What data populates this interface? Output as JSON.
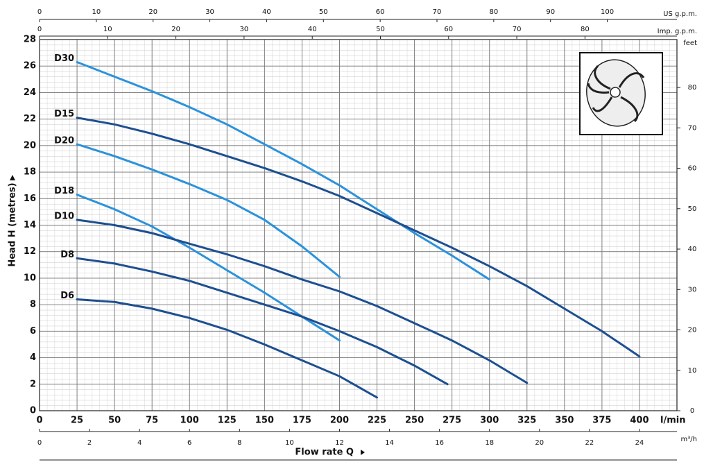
{
  "chart_data": {
    "type": "line",
    "xlabel": "Flow rate Q",
    "xunit": "l/min",
    "ylabel": "Head H (metres)",
    "y2label": "feet",
    "xlim": [
      0,
      425
    ],
    "xticks": [
      0,
      25,
      50,
      75,
      100,
      125,
      150,
      175,
      200,
      225,
      250,
      275,
      300,
      325,
      350,
      375,
      400
    ],
    "ylim": [
      0,
      28
    ],
    "yticks": [
      0,
      2,
      4,
      6,
      8,
      10,
      12,
      14,
      16,
      18,
      20,
      22,
      24,
      26,
      28
    ],
    "y2lim": [
      0,
      91.86
    ],
    "y2ticks": [
      0,
      10,
      20,
      30,
      40,
      50,
      60,
      70,
      80
    ],
    "grid": true,
    "extra_x_axes": [
      {
        "label": "m³/h",
        "position": "bottom",
        "lim": [
          0,
          25.5
        ],
        "ticks": [
          0,
          2,
          4,
          6,
          8,
          10,
          12,
          14,
          16,
          18,
          20,
          22,
          24
        ]
      },
      {
        "label": "US g.p.m.",
        "position": "top",
        "lim": [
          0,
          112.27
        ],
        "ticks": [
          0,
          10,
          20,
          30,
          40,
          50,
          60,
          70,
          80,
          90,
          100
        ]
      },
      {
        "label": "Imp. g.p.m.",
        "position": "top",
        "lim": [
          0,
          93.49
        ],
        "ticks": [
          0,
          10,
          20,
          30,
          40,
          50,
          60,
          70,
          80
        ]
      }
    ],
    "series": [
      {
        "name": "D30",
        "color": "#2b92dc",
        "x": [
          25,
          50,
          75,
          100,
          125,
          150,
          175,
          200,
          225,
          250,
          275,
          300
        ],
        "values": [
          26.3,
          25.2,
          24.1,
          22.9,
          21.6,
          20.1,
          18.6,
          17.0,
          15.2,
          13.4,
          11.7,
          9.9
        ]
      },
      {
        "name": "D15",
        "color": "#1d4f91",
        "x": [
          25,
          50,
          75,
          100,
          125,
          150,
          175,
          200,
          225,
          250,
          275,
          300,
          325,
          350,
          375,
          400
        ],
        "values": [
          22.1,
          21.6,
          20.9,
          20.1,
          19.2,
          18.3,
          17.3,
          16.2,
          14.9,
          13.6,
          12.3,
          10.9,
          9.4,
          7.7,
          6.0,
          4.1
        ]
      },
      {
        "name": "D20",
        "color": "#2b92dc",
        "x": [
          25,
          50,
          75,
          100,
          125,
          150,
          175,
          200
        ],
        "values": [
          20.1,
          19.2,
          18.2,
          17.1,
          15.9,
          14.4,
          12.4,
          10.1
        ]
      },
      {
        "name": "D18",
        "color": "#2b92dc",
        "x": [
          25,
          50,
          75,
          100,
          125,
          150,
          175,
          200
        ],
        "values": [
          16.3,
          15.2,
          13.9,
          12.3,
          10.6,
          8.9,
          7.1,
          5.3
        ]
      },
      {
        "name": "D10",
        "color": "#1d4f91",
        "x": [
          25,
          50,
          75,
          100,
          125,
          150,
          175,
          200,
          225,
          250,
          275,
          300,
          325
        ],
        "values": [
          14.4,
          14.0,
          13.4,
          12.6,
          11.8,
          10.9,
          9.9,
          9.0,
          7.9,
          6.6,
          5.3,
          3.8,
          2.1
        ]
      },
      {
        "name": "D8",
        "color": "#1d4f91",
        "x": [
          25,
          50,
          75,
          100,
          125,
          150,
          175,
          200,
          225,
          250,
          272
        ],
        "values": [
          11.5,
          11.1,
          10.5,
          9.8,
          8.9,
          8.0,
          7.1,
          6.0,
          4.8,
          3.4,
          2.0
        ]
      },
      {
        "name": "D6",
        "color": "#1d4f91",
        "x": [
          25,
          50,
          75,
          100,
          125,
          150,
          175,
          200,
          225
        ],
        "values": [
          8.4,
          8.2,
          7.7,
          7.0,
          6.1,
          5.0,
          3.8,
          2.6,
          1.0
        ]
      }
    ]
  }
}
